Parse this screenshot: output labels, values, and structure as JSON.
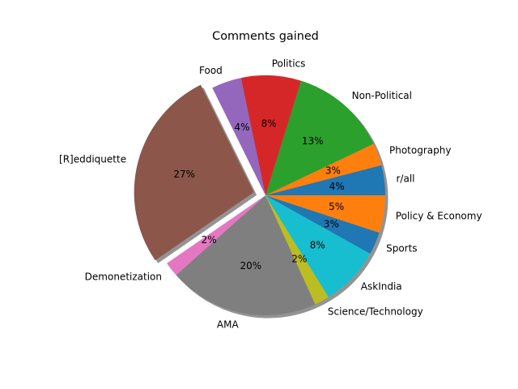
{
  "chart_data": {
    "type": "pie",
    "title": "Comments gained",
    "categories": [
      "r/all",
      "Photography",
      "Non-Political",
      "Politics",
      "Food",
      "[R]eddiquette",
      "Demonetization",
      "AMA",
      "Science/Technology",
      "AskIndia",
      "Sports",
      "Policy & Economy"
    ],
    "values": [
      4,
      3,
      13,
      8,
      4,
      27,
      2,
      20,
      2,
      8,
      3,
      5
    ],
    "value_labels": [
      "4%",
      "3%",
      "13%",
      "8%",
      "4%",
      "27%",
      "2%",
      "20%",
      "2%",
      "8%",
      "3%",
      "5%"
    ],
    "colors": [
      "#1f77b4",
      "#ff7f0e",
      "#2ca02c",
      "#d62728",
      "#9467bd",
      "#8c564b",
      "#e377c2",
      "#7f7f7f",
      "#bcbd22",
      "#17becf",
      "#1f77b4",
      "#ff7f0e"
    ],
    "exploded": "[R]eddiquette",
    "shadow": true,
    "legend": "none"
  }
}
